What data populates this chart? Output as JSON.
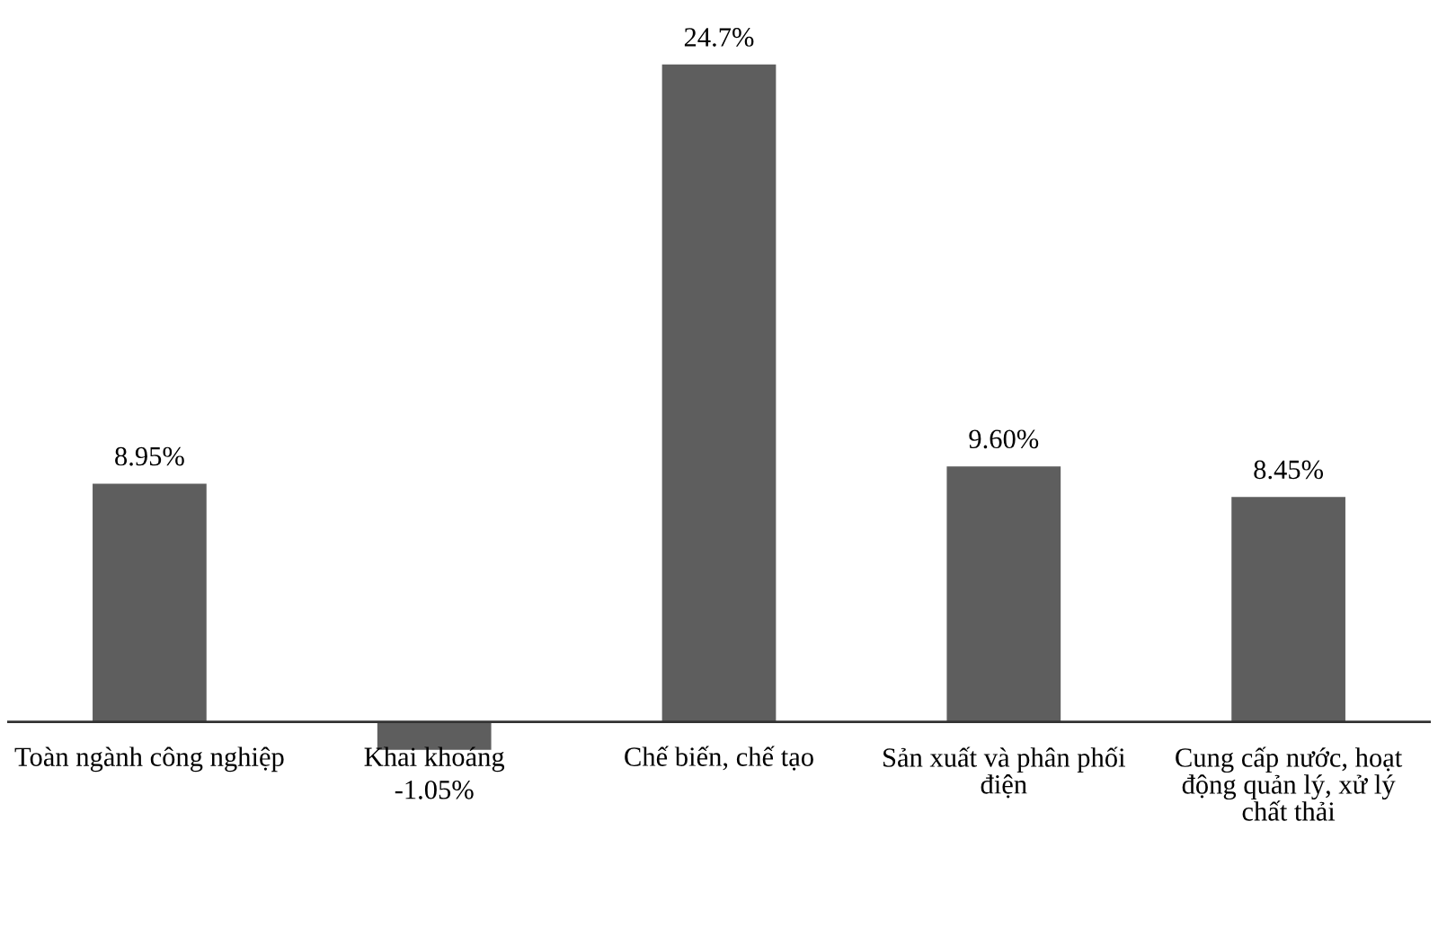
{
  "chart_data": {
    "type": "bar",
    "categories": [
      "Toàn ngành công nghiệp",
      "Khai khoáng",
      "Chế biến, chế tạo",
      "Sản xuất và phân phối điện",
      "Cung cấp nước, hoạt động quản lý, xử lý chất thải"
    ],
    "values": [
      8.95,
      -1.05,
      24.7,
      9.6,
      8.45
    ],
    "value_labels": [
      "8.95%",
      "-1.05%",
      "24.7%",
      "9.60%",
      "8.45%"
    ],
    "color": "#5e5e5e"
  }
}
